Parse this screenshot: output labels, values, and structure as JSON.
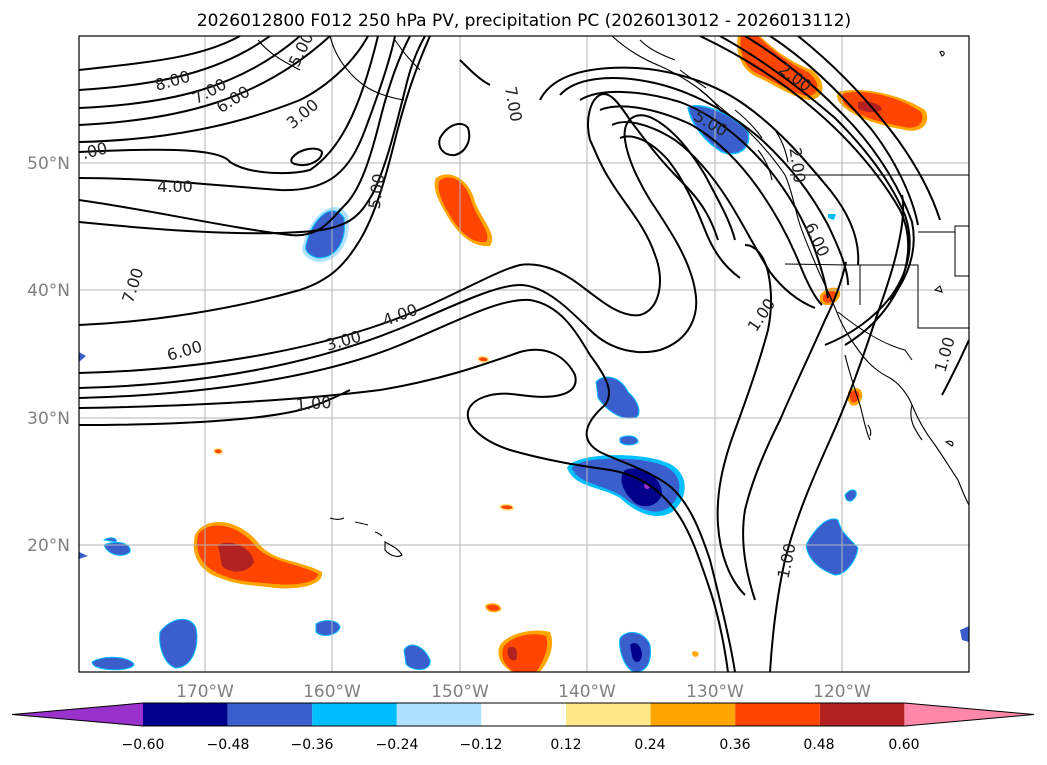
{
  "title": "2026012800 F012 250 hPa PV, precipitation PC (2026013012 - 2026013112)",
  "lon_labels": [
    "170°W",
    "160°W",
    "150°W",
    "140°W",
    "130°W",
    "120°W"
  ],
  "lat_labels": [
    "50°N",
    "40°N",
    "30°N",
    "20°N"
  ],
  "contour_labels": [
    "8.00",
    "7.00",
    "6.00",
    "5.00",
    "3.00",
    ".00",
    "4.00",
    "5.00",
    "7.00",
    "7.00",
    "6.00",
    "3.00",
    "4.00",
    "1.00",
    "2.00",
    "5.00",
    "2.00",
    "6.00",
    "1.00",
    "1.00",
    "1.00"
  ],
  "colorbar": {
    "ticks": [
      "−0.60",
      "−0.48",
      "−0.36",
      "−0.24",
      "−0.12",
      "0.12",
      "0.24",
      "0.36",
      "0.48",
      "0.60"
    ],
    "colors": [
      "#9932cc",
      "#00008b",
      "#3a5fcd",
      "#00bfff",
      "#b0e2ff",
      "#ffffff",
      "#ffe88a",
      "#ffa500",
      "#ff4500",
      "#b22222",
      "#ff88aa"
    ]
  },
  "shading_colors": {
    "dark_blue": "#00008b",
    "blue": "#3a5fcd",
    "cyan": "#00bfff",
    "light_blue": "#b0e2ff",
    "yellow": "#ffe88a",
    "orange": "#ffa500",
    "red_orange": "#ff4500",
    "dark_red": "#b22222",
    "purple": "#9932cc"
  }
}
